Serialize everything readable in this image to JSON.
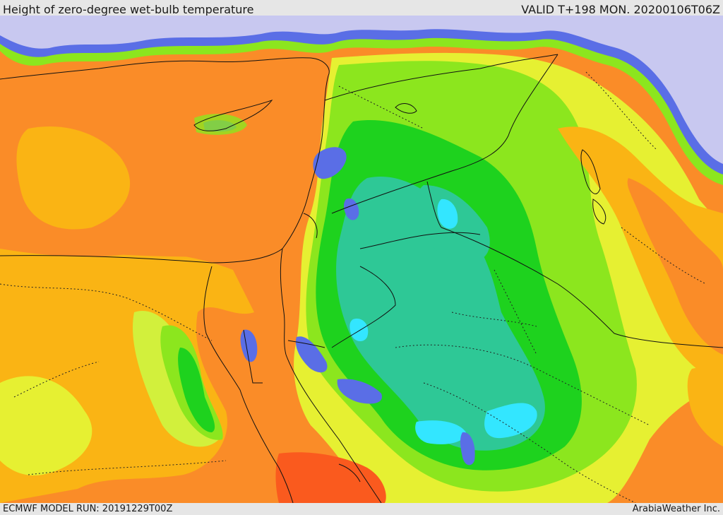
{
  "header": {
    "title": "Height of zero-degree wet-bulb temperature",
    "valid": "VALID T+198 MON. 20200106T06Z"
  },
  "footer": {
    "model_run": "ECMWF MODEL RUN: 20191229T00Z",
    "credit": "ArabiaWeather Inc."
  },
  "palette": {
    "very_low": "#c8c8f0",
    "low_blue": "#5a6ee6",
    "cyan": "#33e6ff",
    "teal": "#2ec896",
    "green": "#1ed21e",
    "light_green": "#8ce61e",
    "yellow_green": "#d2f03c",
    "yellow": "#e6f032",
    "amber": "#fab414",
    "orange": "#fa8c28",
    "red_orange": "#fa5a1e"
  }
}
